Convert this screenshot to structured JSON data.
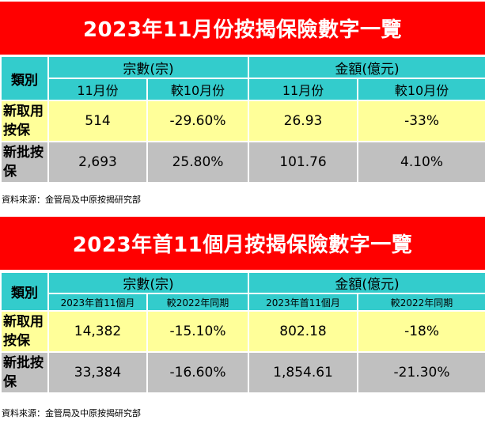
{
  "section1": {
    "title": "2023年11月份按揭保險數字一覽",
    "header": {
      "category": "類別",
      "group_count": "宗數(宗)",
      "group_amount": "金額(億元)",
      "sub_count_cur": "11月份",
      "sub_count_cmp": "較10月份",
      "sub_amount_cur": "11月份",
      "sub_amount_cmp": "較10月份"
    },
    "rows": [
      {
        "label": "新取用按保",
        "count_cur": "514",
        "count_cmp": "-29.60%",
        "amount_cur": "26.93",
        "amount_cmp": "-33%"
      },
      {
        "label": "新批按保",
        "count_cur": "2,693",
        "count_cmp": "25.80%",
        "amount_cur": "101.76",
        "amount_cmp": "4.10%"
      }
    ],
    "source": "資料來源：金管局及中原按揭研究部"
  },
  "section2": {
    "title": "2023年首11個月按揭保險數字一覽",
    "header": {
      "category": "類別",
      "group_count": "宗數(宗)",
      "group_amount": "金額(億元)",
      "sub_count_cur": "2023年首11個月",
      "sub_count_cmp": "較2022年同期",
      "sub_amount_cur": "2023年首11個月",
      "sub_amount_cmp": "較2022年同期"
    },
    "rows": [
      {
        "label": "新取用按保",
        "count_cur": "14,382",
        "count_cmp": "-15.10%",
        "amount_cur": "802.18",
        "amount_cmp": "-18%"
      },
      {
        "label": "新批按保",
        "count_cur": "33,384",
        "count_cmp": "-16.60%",
        "amount_cur": "1,854.61",
        "amount_cmp": "-21.30%"
      }
    ],
    "source": "資料來源：金管局及中原按揭研究部"
  },
  "colors": {
    "banner": "#ff0000",
    "header": "#33cccc",
    "row_yellow": "#ffff99",
    "row_gray": "#c0c0c0"
  }
}
